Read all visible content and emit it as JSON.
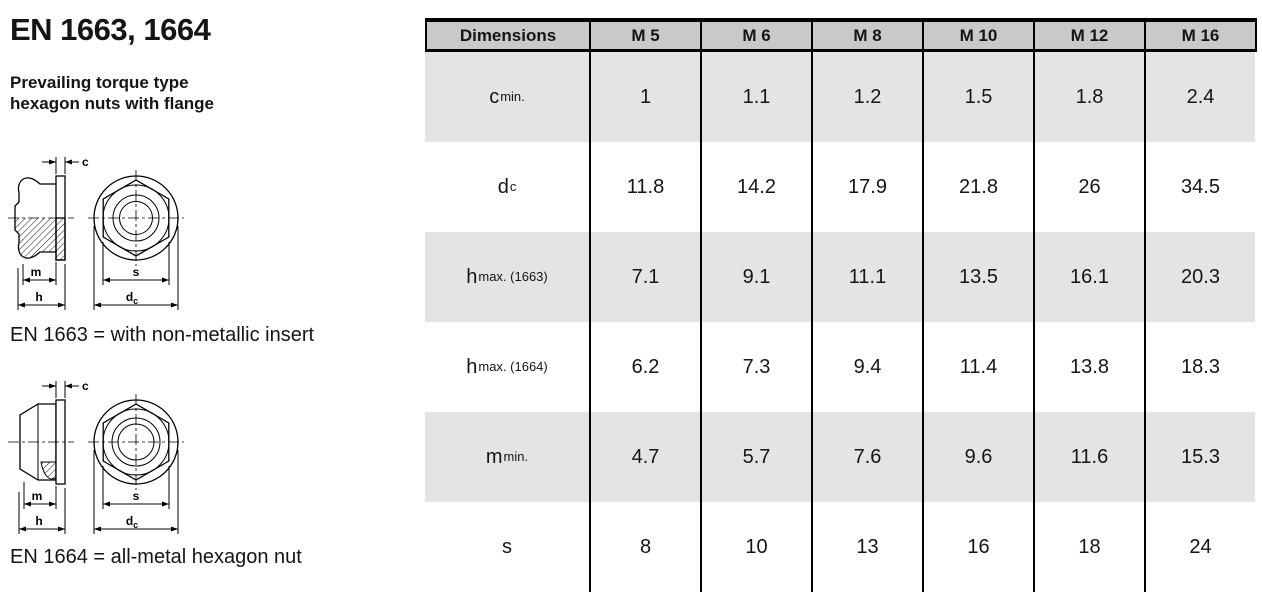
{
  "page": {
    "title": "EN 1663, 1664",
    "subtitle_line1": "Prevailing torque type",
    "subtitle_line2": "hexagon nuts with flange"
  },
  "drawings": {
    "dim_c": "c",
    "dim_m": "m",
    "dim_h": "h",
    "dim_s": "s",
    "dim_dc_base": "d",
    "dim_dc_sub": "c",
    "caption_1663": "EN 1663 = with non-metallic insert",
    "caption_1664": "EN 1664 = all-metal hexagon nut"
  },
  "table": {
    "header": [
      "Dimensions",
      "M 5",
      "M 6",
      "M 8",
      "M 10",
      "M 12",
      "M 16"
    ],
    "rows": [
      {
        "label_base": "c",
        "label_sub": "min.",
        "values": [
          "1",
          "1.1",
          "1.2",
          "1.5",
          "1.8",
          "2.4"
        ]
      },
      {
        "label_base": "d",
        "label_sub": "c",
        "values": [
          "11.8",
          "14.2",
          "17.9",
          "21.8",
          "26",
          "34.5"
        ]
      },
      {
        "label_base": "h",
        "label_sub": "max. (1663)",
        "values": [
          "7.1",
          "9.1",
          "11.1",
          "13.5",
          "16.1",
          "20.3"
        ]
      },
      {
        "label_base": "h",
        "label_sub": "max. (1664)",
        "values": [
          "6.2",
          "7.3",
          "9.4",
          "11.4",
          "13.8",
          "18.3"
        ]
      },
      {
        "label_base": "m",
        "label_sub": "min.",
        "values": [
          "4.7",
          "5.7",
          "7.6",
          "9.6",
          "11.6",
          "15.3"
        ]
      },
      {
        "label_base": "s",
        "label_sub": "",
        "values": [
          "8",
          "10",
          "13",
          "16",
          "18",
          "24"
        ]
      }
    ]
  },
  "colors": {
    "header_bg": "#c9c9c9",
    "row_alt_bg": "#e4e4e4",
    "line": "#000000"
  }
}
